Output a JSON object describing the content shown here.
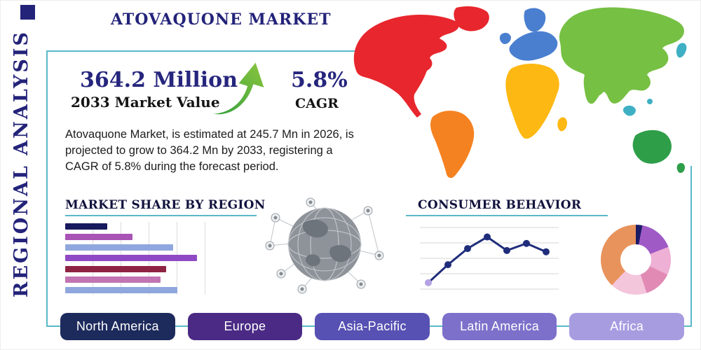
{
  "header": {
    "title": "ATOVAQUONE MARKET",
    "side_label": "REGIONAL ANALYSIS"
  },
  "stats": {
    "value": "364.2 Million",
    "value_caption": "2033 Market Value",
    "cagr": "5.8%",
    "cagr_caption": "CAGR",
    "description": "Atovaquone Market, is estimated at 245.7 Mn in 2026, is projected to grow to 364.2 Mn by 2033, registering a CAGR of 5.8% during the forecast period."
  },
  "sections": {
    "market_share_title": "MARKET SHARE BY REGION",
    "consumer_behavior_title": "CONSUMER BEHAVIOR"
  },
  "region_buttons": [
    {
      "label": "North America",
      "color": "#1d2a5c"
    },
    {
      "label": "Europe",
      "color": "#4a2a85"
    },
    {
      "label": "Asia-Pacific",
      "color": "#5751b3"
    },
    {
      "label": "Latin America",
      "color": "#7c70ca"
    },
    {
      "label": "Africa",
      "color": "#a89ce1"
    }
  ],
  "accent": {
    "teal": "#5ab9c9",
    "navy": "#23237a",
    "arrow_green_dark": "#2f9e3c",
    "arrow_green_light": "#8dc63f"
  },
  "map": {
    "colors": {
      "north_america": "#e8262d",
      "greenland": "#e8262d",
      "south_america": "#f58220",
      "europe": "#4a7fd0",
      "uk": "#4a7fd0",
      "scandinavia": "#4a7fd0",
      "africa": "#fdb813",
      "madagascar": "#fdb813",
      "asia": "#76c043",
      "india": "#76c043",
      "australia": "#2e9e49",
      "new_zealand": "#2e9e49",
      "islands": "#3fb0c4"
    }
  },
  "chart_data": [
    {
      "id": "market_share_bars",
      "type": "bar",
      "title": "MARKET SHARE BY REGION",
      "orientation": "horizontal",
      "values": [
        30,
        48,
        77,
        94,
        72,
        68,
        80
      ],
      "colors": [
        "#181a5e",
        "#a853b5",
        "#8fa7de",
        "#8f49c4",
        "#8e2444",
        "#c273b2",
        "#8fa7de"
      ],
      "xlim": [
        0,
        100
      ],
      "grid": "vertical"
    },
    {
      "id": "consumer_behavior_line",
      "type": "line",
      "title": "CONSUMER BEHAVIOR",
      "x": [
        1,
        2,
        3,
        4,
        5,
        6,
        7
      ],
      "values": [
        11,
        39,
        64,
        82,
        61,
        72,
        59
      ],
      "ylim": [
        0,
        100
      ],
      "color": "#1f2d7b",
      "first_marker_color": "#b3a3e3",
      "grid": "horizontal"
    },
    {
      "id": "region_donut",
      "type": "pie",
      "slices": [
        {
          "color": "#1c1c66",
          "value": 3
        },
        {
          "color": "#a05ac6",
          "value": 16
        },
        {
          "color": "#eeb0d4",
          "value": 13
        },
        {
          "color": "#e18bb4",
          "value": 13
        },
        {
          "color": "#f4c6dc",
          "value": 17
        },
        {
          "color": "#e8935c",
          "value": 38
        }
      ]
    }
  ]
}
